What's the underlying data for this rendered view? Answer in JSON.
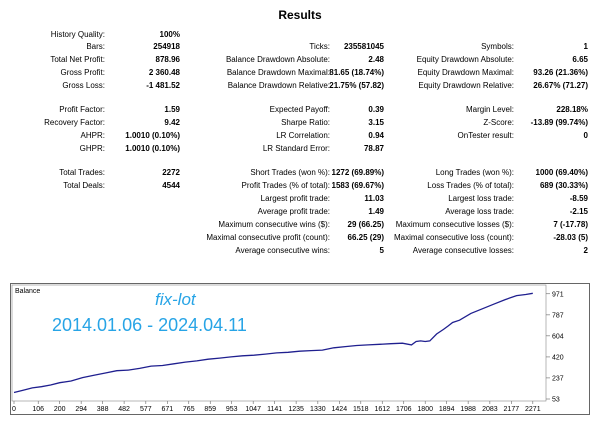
{
  "report": {
    "title": "Results",
    "rows": [
      {
        "c1": [
          "History Quality:",
          "100%"
        ],
        "c2": null,
        "c3": null
      },
      {
        "c1": [
          "Bars:",
          "254918"
        ],
        "c2": [
          "Ticks:",
          "235581045"
        ],
        "c3": [
          "Symbols:",
          "1"
        ]
      },
      {
        "c1": [
          "Total Net Profit:",
          "878.96"
        ],
        "c2": [
          "Balance Drawdown Absolute:",
          "2.48"
        ],
        "c3": [
          "Equity Drawdown Absolute:",
          "6.65"
        ]
      },
      {
        "c1": [
          "Gross Profit:",
          "2 360.48"
        ],
        "c2": [
          "Balance Drawdown Maximal:",
          "81.65 (18.74%)"
        ],
        "c3": [
          "Equity Drawdown Maximal:",
          "93.26 (21.36%)"
        ]
      },
      {
        "c1": [
          "Gross Loss:",
          "-1 481.52"
        ],
        "c2": [
          "Balance Drawdown Relative:",
          "21.75% (57.82)"
        ],
        "c3": [
          "Equity Drawdown Relative:",
          "26.67% (71.27)"
        ]
      },
      {
        "c1": [
          "Profit Factor:",
          "1.59"
        ],
        "c2": [
          "Expected Payoff:",
          "0.39"
        ],
        "c3": [
          "Margin Level:",
          "228.18%"
        ]
      },
      {
        "c1": [
          "Recovery Factor:",
          "9.42"
        ],
        "c2": [
          "Sharpe Ratio:",
          "3.15"
        ],
        "c3": [
          "Z-Score:",
          "-13.89 (99.74%)"
        ]
      },
      {
        "c1": [
          "AHPR:",
          "1.0010 (0.10%)"
        ],
        "c2": [
          "LR Correlation:",
          "0.94"
        ],
        "c3": [
          "OnTester result:",
          "0"
        ]
      },
      {
        "c1": [
          "GHPR:",
          "1.0010 (0.10%)"
        ],
        "c2": [
          "LR Standard Error:",
          "78.87"
        ],
        "c3": null
      },
      {
        "c1": [
          "Total Trades:",
          "2272"
        ],
        "c2": [
          "Short Trades (won %):",
          "1272 (69.89%)"
        ],
        "c3": [
          "Long Trades (won %):",
          "1000 (69.40%)"
        ]
      },
      {
        "c1": [
          "Total Deals:",
          "4544"
        ],
        "c2": [
          "Profit Trades (% of total):",
          "1583 (69.67%)"
        ],
        "c3": [
          "Loss Trades (% of total):",
          "689 (30.33%)"
        ]
      },
      {
        "c1": null,
        "c2": [
          "Largest profit trade:",
          "11.03"
        ],
        "c3": [
          "Largest loss trade:",
          "-8.59"
        ]
      },
      {
        "c1": null,
        "c2": [
          "Average profit trade:",
          "1.49"
        ],
        "c3": [
          "Average loss trade:",
          "-2.15"
        ]
      },
      {
        "c1": null,
        "c2": [
          "Maximum consecutive wins ($):",
          "29 (66.25)"
        ],
        "c3": [
          "Maximum consecutive losses ($):",
          "7 (-17.78)"
        ]
      },
      {
        "c1": null,
        "c2": [
          "Maximal consecutive profit (count):",
          "66.25 (29)"
        ],
        "c3": [
          "Maximal consecutive loss (count):",
          "-28.03 (5)"
        ]
      },
      {
        "c1": null,
        "c2": [
          "Average consecutive wins:",
          "5"
        ],
        "c3": [
          "Average consecutive losses:",
          "2"
        ]
      }
    ]
  },
  "chart_data": {
    "type": "line",
    "title": "Balance",
    "annotations": [
      "fix-lot",
      "2014.01.06 - 2024.04.11"
    ],
    "x_ticks": [
      0,
      106,
      200,
      294,
      388,
      482,
      577,
      671,
      765,
      859,
      953,
      1047,
      1141,
      1235,
      1330,
      1424,
      1518,
      1612,
      1706,
      1800,
      1894,
      1988,
      2083,
      2177,
      2271
    ],
    "y_ticks": [
      53,
      237,
      420,
      604,
      787,
      971
    ],
    "xlim": [
      0,
      2320
    ],
    "ylim": [
      53,
      1030
    ],
    "x": [
      0,
      40,
      80,
      120,
      160,
      200,
      250,
      300,
      350,
      400,
      450,
      500,
      550,
      600,
      650,
      700,
      750,
      800,
      850,
      900,
      950,
      1000,
      1050,
      1100,
      1150,
      1200,
      1250,
      1300,
      1350,
      1400,
      1450,
      1500,
      1550,
      1600,
      1650,
      1700,
      1740,
      1760,
      1780,
      1800,
      1820,
      1850,
      1880,
      1900,
      1920,
      1950,
      2000,
      2050,
      2100,
      2150,
      2200,
      2240,
      2271
    ],
    "series": [
      {
        "values": [
          110,
          130,
          150,
          160,
          175,
          195,
          210,
          240,
          260,
          280,
          300,
          305,
          320,
          340,
          345,
          360,
          375,
          385,
          400,
          410,
          420,
          430,
          435,
          445,
          455,
          460,
          470,
          475,
          480,
          500,
          510,
          520,
          525,
          530,
          535,
          540,
          525,
          555,
          560,
          555,
          560,
          620,
          660,
          690,
          720,
          740,
          800,
          840,
          880,
          920,
          955,
          965,
          975
        ]
      }
    ],
    "line_color": "#1f1f8f",
    "annotation_color": "#27a4e6"
  }
}
